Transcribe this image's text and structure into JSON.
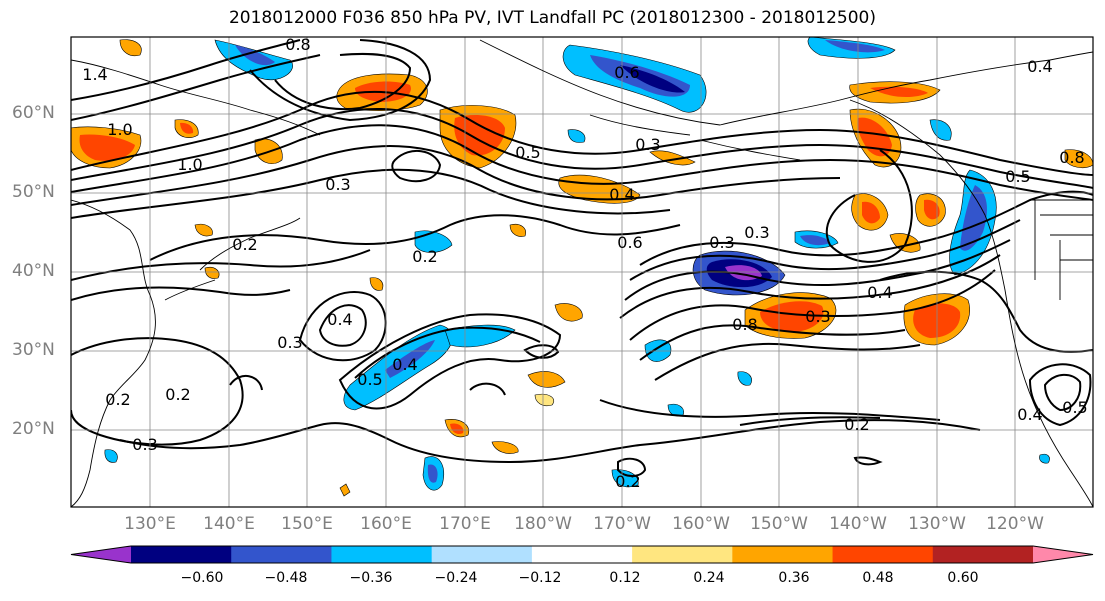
{
  "title": "2018012000 F036 850 hPa PV, IVT Landfall PC (2018012300 - 2018012500)",
  "lat_labels": [
    "60°N",
    "50°N",
    "40°N",
    "30°N",
    "20°N"
  ],
  "lon_labels": [
    "130°E",
    "140°E",
    "150°E",
    "160°E",
    "170°E",
    "180°W",
    "170°W",
    "160°W",
    "150°W",
    "140°W",
    "130°W",
    "120°W"
  ],
  "contour_labels": [
    "0.8",
    "0.6",
    "1.4",
    "1.0",
    "1.0",
    "0.5",
    "0.3",
    "0.4",
    "0.6",
    "0.3",
    "0.3",
    "0.2",
    "0.2",
    "0.3",
    "0.4",
    "0.3",
    "0.2",
    "0.2",
    "0.3",
    "0.5",
    "0.4",
    "0.4",
    "0.3",
    "0.8",
    "0.2",
    "0.2",
    "0.4",
    "0.5",
    "0.8",
    "0.4",
    "0.5"
  ],
  "colorbar": {
    "colors": [
      "#9933cc",
      "#000080",
      "#3355cc",
      "#00bfff",
      "#b0e0ff",
      "#ffffff",
      "#ffe680",
      "#ffa500",
      "#ff4500",
      "#b22222",
      "#ff88aa"
    ],
    "ticks": [
      "−0.60",
      "−0.48",
      "−0.36",
      "−0.24",
      "−0.12",
      "0.12",
      "0.24",
      "0.36",
      "0.48",
      "0.60"
    ]
  }
}
